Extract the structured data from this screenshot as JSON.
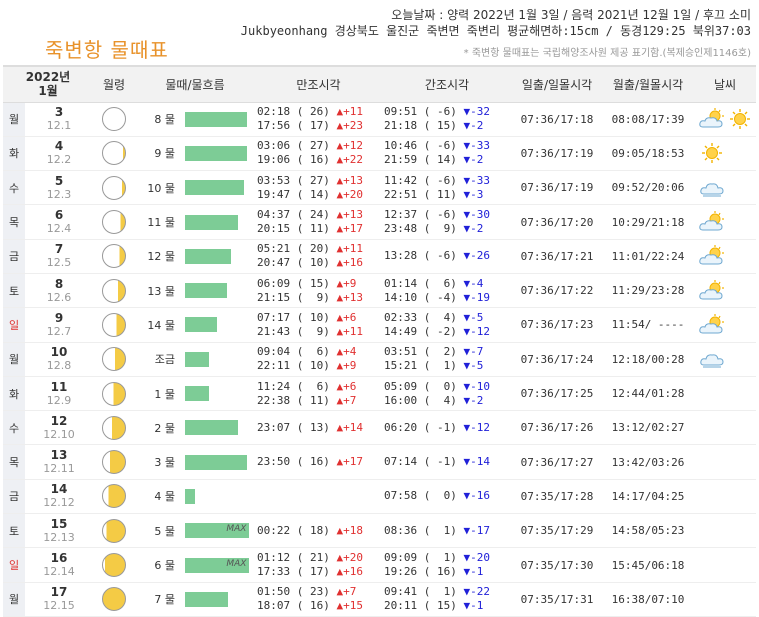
{
  "header": {
    "title": "죽변항 물때표",
    "today": "오늘날짜 : 양력 2022년 1월 3일 / 음력 2021년 12월 1일 / 후끄 소미",
    "location": "Jukbyeonhang 경상북도 울진군 죽변면 죽변리 평균해면하:15cm / 동경129:25 북위37:03",
    "note": "* 죽변항 물때표는 국립해양조사원 제공 표기함.(복제승인제1146호)"
  },
  "columns": {
    "year": "2022년",
    "month": "1월",
    "moon": "월령",
    "tide": "물때/물흐름",
    "high": "만조시각",
    "low": "간조시각",
    "sun": "일출/일몰시각",
    "moonrise": "월출/월몰시각",
    "weather": "날씨"
  },
  "colors": {
    "tide_bar": "#7dcc96",
    "up": "#e03030",
    "down": "#2020d8",
    "sunday": "#e03030",
    "moon_lit": "#f4cb45"
  },
  "rows": [
    {
      "dow": "월",
      "solar": "3",
      "lunar": "12.1",
      "phase": 0.02,
      "tide": "8 물",
      "bar": 0.88,
      "max": "",
      "high1": "02:18 ( 26) ",
      "hd1": "▲+11",
      "high2": "17:56 ( 17) ",
      "hd2": "▲+23",
      "low1": "09:51 ( -6) ",
      "ld1": "▼-32",
      "low2": "21:18 ( 15) ",
      "ld2": "▼-2",
      "sun": "07:36/17:18",
      "moonrise": "08:08/17:39",
      "weather": [
        "sun-cloud-icon",
        "sun-icon"
      ]
    },
    {
      "dow": "화",
      "solar": "4",
      "lunar": "12.2",
      "phase": 0.08,
      "tide": "9 물",
      "bar": 0.88,
      "max": "",
      "high1": "03:06 ( 27) ",
      "hd1": "▲+12",
      "high2": "19:06 ( 16) ",
      "hd2": "▲+22",
      "low1": "10:46 ( -6) ",
      "ld1": "▼-33",
      "low2": "21:59 ( 14) ",
      "ld2": "▼-2",
      "sun": "07:36/17:19",
      "moonrise": "09:05/18:53",
      "weather": [
        "sun-icon"
      ]
    },
    {
      "dow": "수",
      "solar": "5",
      "lunar": "12.3",
      "phase": 0.14,
      "tide": "10 물",
      "bar": 0.84,
      "max": "",
      "high1": "03:53 ( 27) ",
      "hd1": "▲+13",
      "high2": "19:47 ( 14) ",
      "hd2": "▲+20",
      "low1": "11:42 ( -6) ",
      "ld1": "▼-33",
      "low2": "22:51 ( 11) ",
      "ld2": "▼-3",
      "sun": "07:36/17:19",
      "moonrise": "09:52/20:06",
      "weather": [
        "cloud-icon"
      ]
    },
    {
      "dow": "목",
      "solar": "6",
      "lunar": "12.4",
      "phase": 0.2,
      "tide": "11 물",
      "bar": 0.76,
      "max": "",
      "high1": "04:37 ( 24) ",
      "hd1": "▲+13",
      "high2": "20:15 ( 11) ",
      "hd2": "▲+17",
      "low1": "12:37 ( -6) ",
      "ld1": "▼-30",
      "low2": "23:48 (  9) ",
      "ld2": "▼-2",
      "sun": "07:36/17:20",
      "moonrise": "10:29/21:18",
      "weather": [
        "sun-cloud-icon"
      ]
    },
    {
      "dow": "금",
      "solar": "7",
      "lunar": "12.5",
      "phase": 0.26,
      "tide": "12 물",
      "bar": 0.66,
      "max": "",
      "high1": "05:21 ( 20) ",
      "hd1": "▲+11",
      "high2": "20:47 ( 10) ",
      "hd2": "▲+16",
      "low1": "13:28 ( -6) ",
      "ld1": "▼-26",
      "low2": "",
      "ld2": "",
      "sun": "07:36/17:21",
      "moonrise": "11:01/22:24",
      "weather": [
        "sun-cloud-icon"
      ]
    },
    {
      "dow": "토",
      "solar": "8",
      "lunar": "12.6",
      "phase": 0.32,
      "tide": "13 물",
      "bar": 0.6,
      "max": "",
      "high1": "06:09 ( 15) ",
      "hd1": "▲+9",
      "high2": "21:15 (  9) ",
      "hd2": "▲+13",
      "low1": "01:14 (  6) ",
      "ld1": "▼-4",
      "low2": "14:10 ( -4) ",
      "ld2": "▼-19",
      "sun": "07:36/17:22",
      "moonrise": "11:29/23:28",
      "weather": [
        "sun-cloud-icon"
      ]
    },
    {
      "dow": "일",
      "solar": "9",
      "lunar": "12.7",
      "phase": 0.38,
      "tide": "14 물",
      "bar": 0.46,
      "max": "",
      "high1": "07:17 ( 10) ",
      "hd1": "▲+6",
      "high2": "21:43 (  9) ",
      "hd2": "▲+11",
      "low1": "02:33 (  4) ",
      "ld1": "▼-5",
      "low2": "14:49 ( -2) ",
      "ld2": "▼-12",
      "sun": "07:36/17:23",
      "moonrise": "11:54/ ----",
      "weather": [
        "sun-cloud-icon"
      ],
      "sunday": true
    },
    {
      "dow": "월",
      "solar": "10",
      "lunar": "12.8",
      "phase": 0.45,
      "tide": "조금",
      "bar": 0.34,
      "max": "",
      "high1": "09:04 (  6) ",
      "hd1": "▲+4",
      "high2": "22:11 ( 10) ",
      "hd2": "▲+9",
      "low1": "03:51 (  2) ",
      "ld1": "▼-7",
      "low2": "15:21 (  1) ",
      "ld2": "▼-5",
      "sun": "07:36/17:24",
      "moonrise": "12:18/00:28",
      "weather": [
        "cloud-icon"
      ]
    },
    {
      "dow": "화",
      "solar": "11",
      "lunar": "12.9",
      "phase": 0.52,
      "tide": "1 물",
      "bar": 0.34,
      "max": "",
      "high1": "11:24 (  6) ",
      "hd1": "▲+6",
      "high2": "22:38 ( 11) ",
      "hd2": "▲+7",
      "low1": "05:09 (  0) ",
      "ld1": "▼-10",
      "low2": "16:00 (  4) ",
      "ld2": "▼-2",
      "sun": "07:36/17:25",
      "moonrise": "12:44/01:28",
      "weather": []
    },
    {
      "dow": "수",
      "solar": "12",
      "lunar": "12.10",
      "phase": 0.6,
      "tide": "2 물",
      "bar": 0.76,
      "max": "",
      "high1": "23:07 ( 13) ",
      "hd1": "▲+14",
      "high2": "",
      "hd2": "",
      "low1": "06:20 ( -1) ",
      "ld1": "▼-12",
      "low2": "",
      "ld2": "",
      "sun": "07:36/17:26",
      "moonrise": "13:12/02:27",
      "weather": []
    },
    {
      "dow": "목",
      "solar": "13",
      "lunar": "12.11",
      "phase": 0.68,
      "tide": "3 물",
      "bar": 0.88,
      "max": "",
      "high1": "23:50 ( 16) ",
      "hd1": "▲+17",
      "high2": "",
      "hd2": "",
      "low1": "07:14 ( -1) ",
      "ld1": "▼-14",
      "low2": "",
      "ld2": "",
      "sun": "07:36/17:27",
      "moonrise": "13:42/03:26",
      "weather": []
    },
    {
      "dow": "금",
      "solar": "14",
      "lunar": "12.12",
      "phase": 0.76,
      "tide": "4 물",
      "bar": 0.14,
      "max": "",
      "high1": "",
      "hd1": "",
      "high2": "",
      "hd2": "",
      "low1": "07:58 (  0) ",
      "ld1": "▼-16",
      "low2": "",
      "ld2": "",
      "sun": "07:35/17:28",
      "moonrise": "14:17/04:25",
      "weather": []
    },
    {
      "dow": "토",
      "solar": "15",
      "lunar": "12.13",
      "phase": 0.84,
      "tide": "5 물",
      "bar": 0.92,
      "max": "MAX",
      "high1": "00:22 ( 18) ",
      "hd1": "▲+18",
      "high2": "",
      "hd2": "",
      "low1": "08:36 (  1) ",
      "ld1": "▼-17",
      "low2": "",
      "ld2": "",
      "sun": "07:35/17:29",
      "moonrise": "14:58/05:23",
      "weather": []
    },
    {
      "dow": "일",
      "solar": "16",
      "lunar": "12.14",
      "phase": 0.92,
      "tide": "6 물",
      "bar": 0.92,
      "max": "MAX",
      "high1": "01:12 ( 21) ",
      "hd1": "▲+20",
      "high2": "17:33 ( 17) ",
      "hd2": "▲+16",
      "low1": "09:09 (  1) ",
      "ld1": "▼-20",
      "low2": "19:26 ( 16) ",
      "ld2": "▼-1",
      "sun": "07:35/17:30",
      "moonrise": "15:45/06:18",
      "weather": [],
      "sunday": true
    },
    {
      "dow": "월",
      "solar": "17",
      "lunar": "12.15",
      "phase": 1.0,
      "tide": "7 물",
      "bar": 0.62,
      "max": "",
      "high1": "01:50 ( 23) ",
      "hd1": "▲+7",
      "high2": "18:07 ( 16) ",
      "hd2": "▲+15",
      "low1": "09:41 (  1) ",
      "ld1": "▼-22",
      "low2": "20:11 ( 15) ",
      "ld2": "▼-1",
      "sun": "07:35/17:31",
      "moonrise": "16:38/07:10",
      "weather": []
    }
  ]
}
